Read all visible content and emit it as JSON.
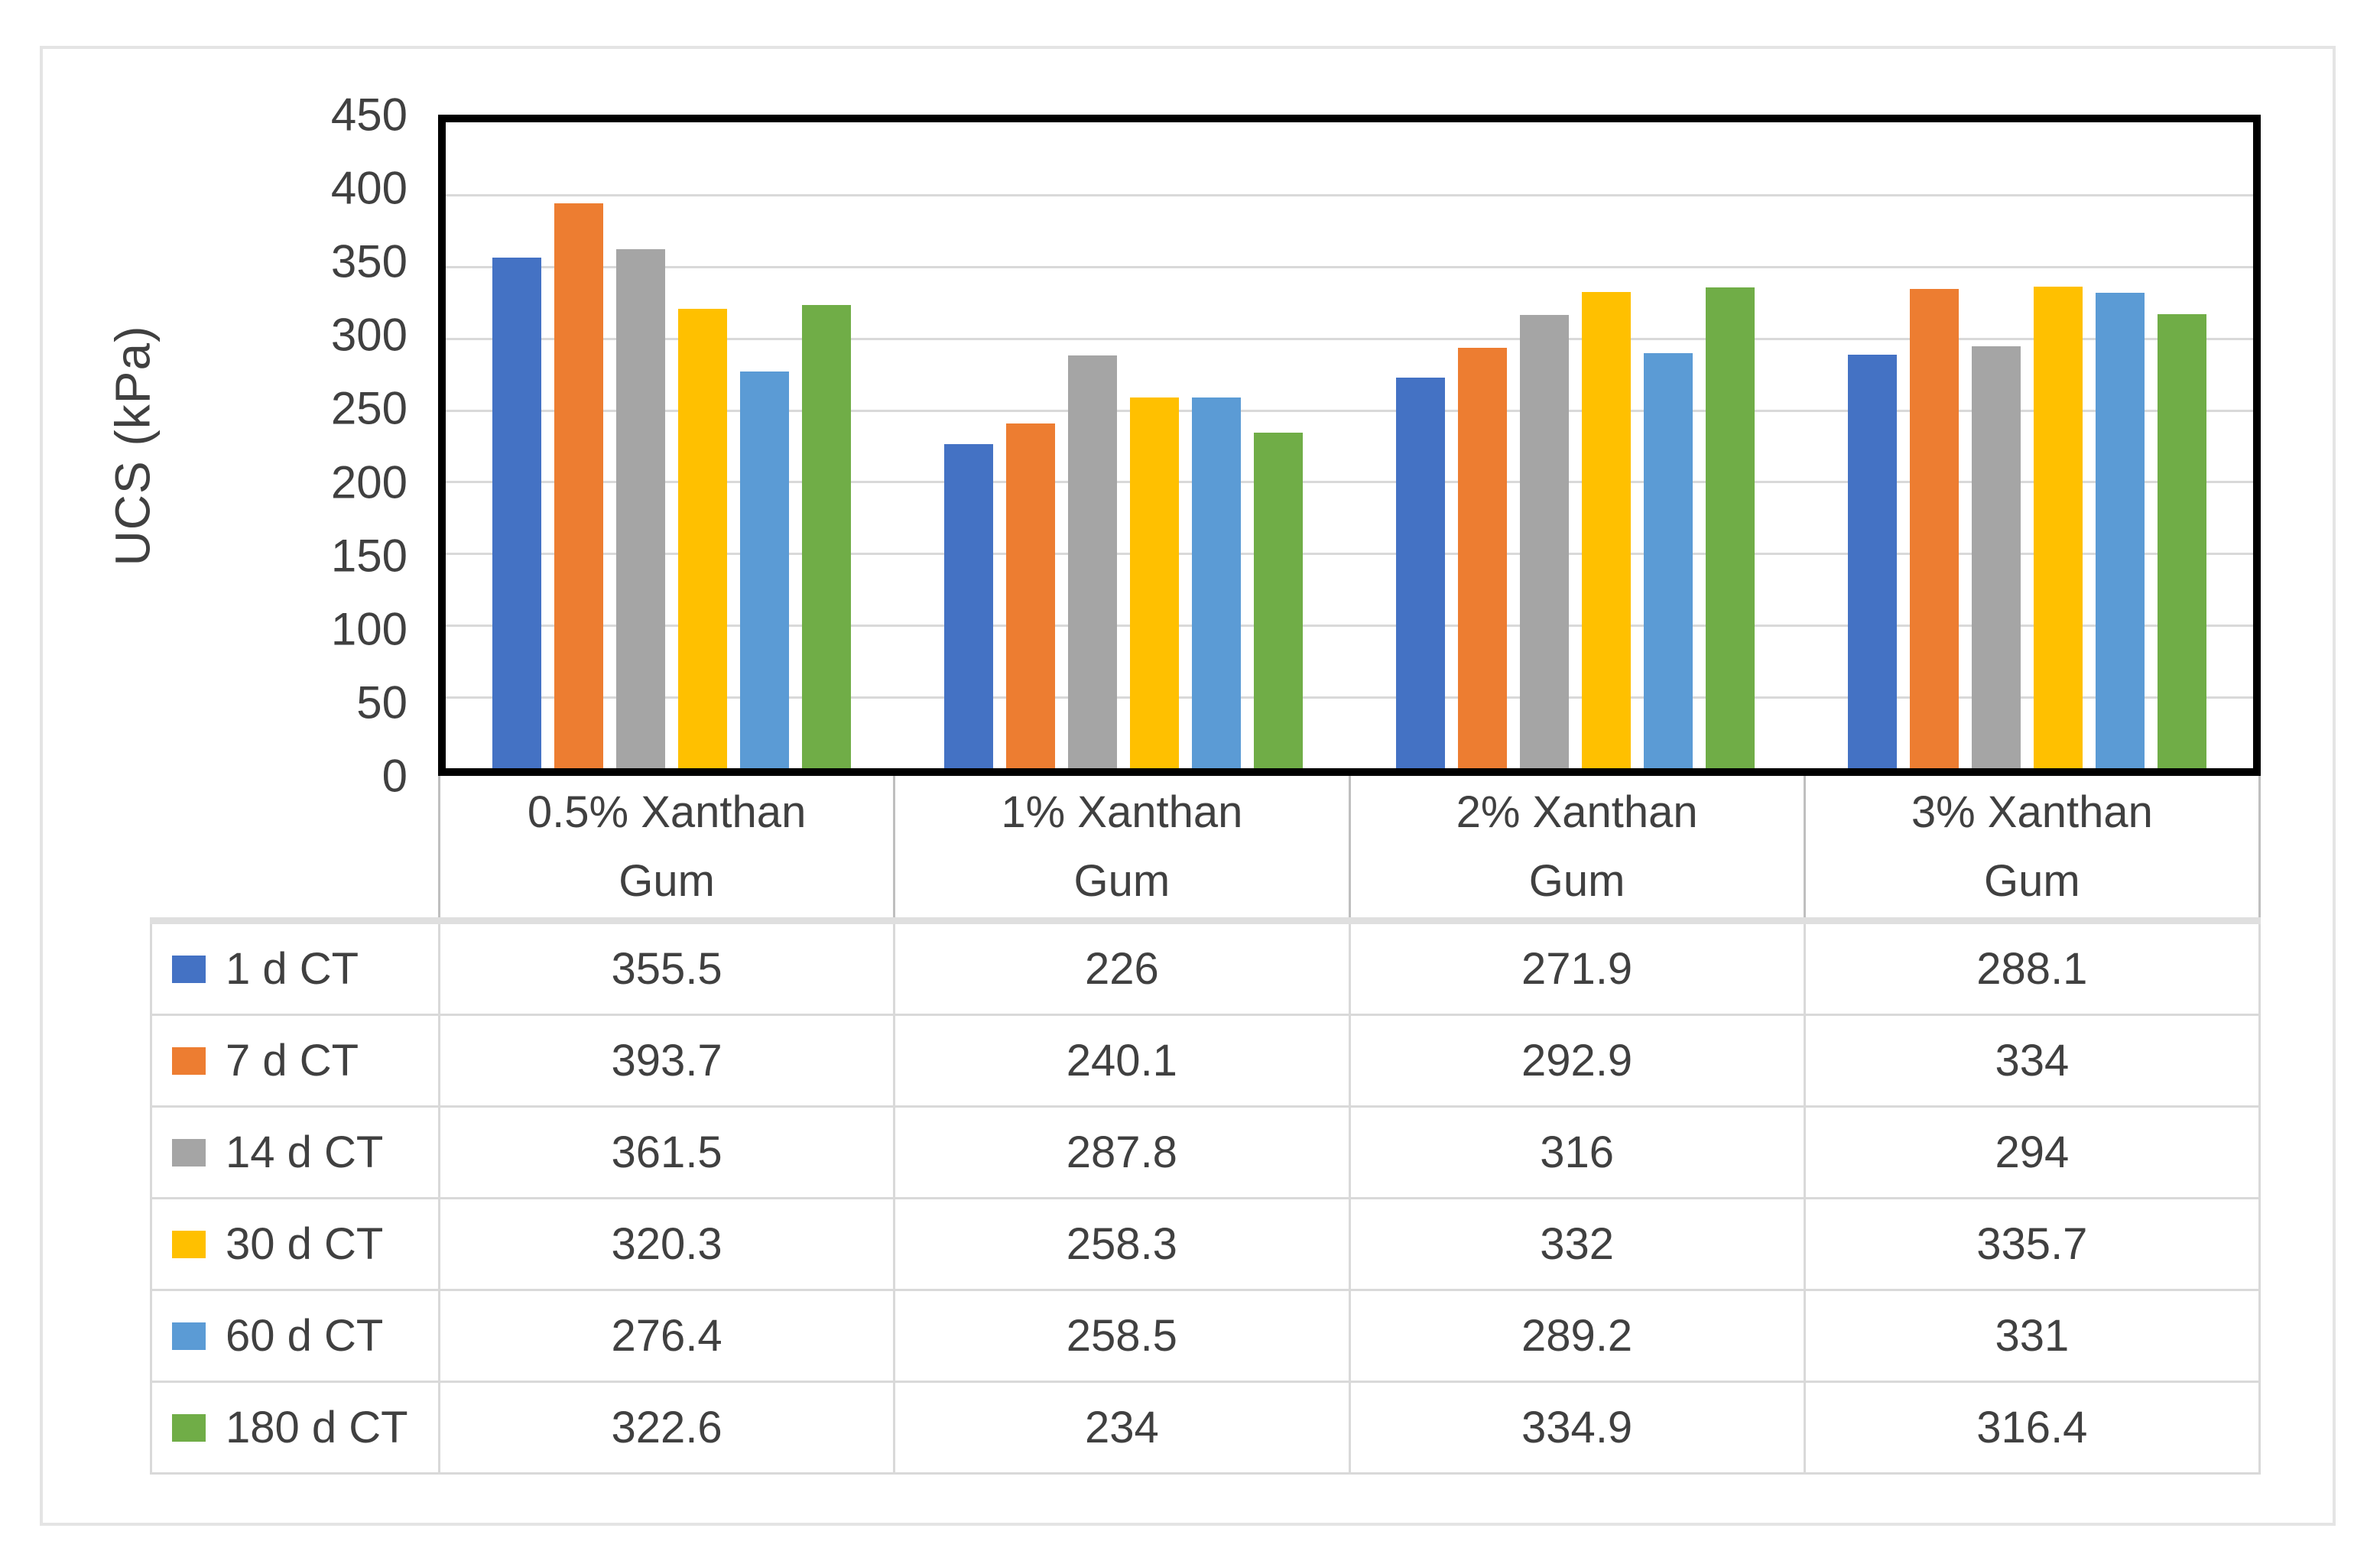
{
  "colors": {
    "text": "#404040",
    "axis": "#000000",
    "gridline": "#d9d9d9",
    "table_border": "#d9d9d9",
    "header_border": "#bfbfbf",
    "frame_border": "#e4e4e4",
    "series_blue": "#4472C4",
    "series_orange": "#ED7D31",
    "series_gray": "#A5A5A5",
    "series_yellow": "#FFC000",
    "series_lightblue": "#5B9BD5",
    "series_green": "#70AD47"
  },
  "chart_data": {
    "type": "bar",
    "title": "",
    "xlabel": "",
    "ylabel": "UCS (kPa)",
    "ylim": [
      0,
      450
    ],
    "ytick_interval": 50,
    "yticks": [
      "450",
      "400",
      "350",
      "300",
      "250",
      "200",
      "150",
      "100",
      "50",
      "0"
    ],
    "grid": true,
    "legend_position": "table-rows-left",
    "categories": [
      "0.5% Xanthan Gum",
      "1% Xanthan Gum",
      "2% Xanthan Gum",
      "3% Xanthan Gum"
    ],
    "series": [
      {
        "name": "1 d CT",
        "color": "#4472C4",
        "values": [
          355.5,
          226,
          271.9,
          288.1
        ]
      },
      {
        "name": "7 d CT",
        "color": "#ED7D31",
        "values": [
          393.7,
          240.1,
          292.9,
          334
        ]
      },
      {
        "name": "14 d CT",
        "color": "#A5A5A5",
        "values": [
          361.5,
          287.8,
          316,
          294
        ]
      },
      {
        "name": "30 d CT",
        "color": "#FFC000",
        "values": [
          320.3,
          258.3,
          332,
          335.7
        ]
      },
      {
        "name": "60 d CT",
        "color": "#5B9BD5",
        "values": [
          276.4,
          258.5,
          289.2,
          331
        ]
      },
      {
        "name": "180 d CT",
        "color": "#70AD47",
        "values": [
          322.6,
          234,
          334.9,
          316.4
        ]
      }
    ]
  },
  "table": {
    "header_lines": [
      {
        "line1": "0.5% Xanthan",
        "line2": "Gum"
      },
      {
        "line1": "1% Xanthan",
        "line2": "Gum"
      },
      {
        "line1": "2% Xanthan",
        "line2": "Gum"
      },
      {
        "line1": "3% Xanthan",
        "line2": "Gum"
      }
    ]
  }
}
